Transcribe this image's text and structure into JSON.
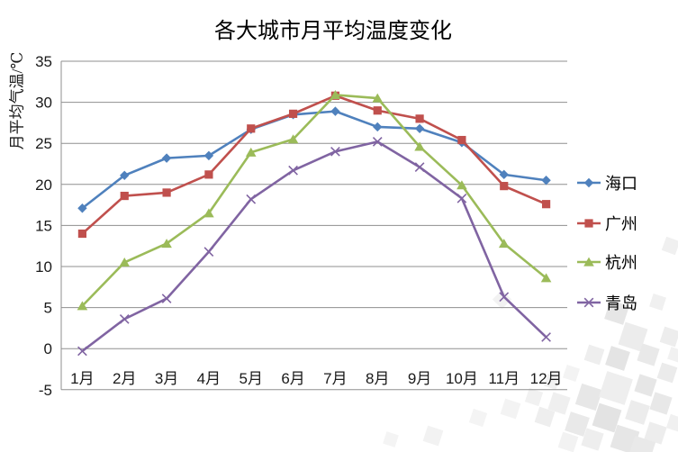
{
  "title": "各大城市月平均温度变化",
  "chart_data": {
    "type": "line",
    "title": "各大城市月平均温度变化",
    "xlabel": "",
    "ylabel": "月平均气温/℃",
    "categories": [
      "1月",
      "2月",
      "3月",
      "4月",
      "5月",
      "6月",
      "7月",
      "8月",
      "9月",
      "10月",
      "11月",
      "12月"
    ],
    "series": [
      {
        "name": "海口",
        "color": "#4F81BD",
        "marker": "diamond",
        "values": [
          17.1,
          21.1,
          23.2,
          23.5,
          26.7,
          28.5,
          28.9,
          27.0,
          26.8,
          25.1,
          21.2,
          20.5
        ]
      },
      {
        "name": "广州",
        "color": "#C0504D",
        "marker": "square",
        "values": [
          14.0,
          18.6,
          19.0,
          21.2,
          26.8,
          28.6,
          30.8,
          29.0,
          28.0,
          25.4,
          19.8,
          17.6
        ]
      },
      {
        "name": "杭州",
        "color": "#9BBB59",
        "marker": "triangle",
        "values": [
          5.2,
          10.5,
          12.8,
          16.5,
          23.9,
          25.5,
          30.9,
          30.5,
          24.6,
          19.9,
          12.8,
          8.6
        ]
      },
      {
        "name": "青岛",
        "color": "#8064A2",
        "marker": "x",
        "values": [
          -0.3,
          3.6,
          6.1,
          11.8,
          18.2,
          21.7,
          24.0,
          25.2,
          22.1,
          18.3,
          6.3,
          1.4
        ]
      }
    ],
    "ylim": [
      -5,
      35
    ],
    "yticks": [
      35,
      30,
      25,
      20,
      15,
      10,
      5,
      0,
      -5
    ],
    "grid": true,
    "gridline_color": "#8f8f8f",
    "legend_position": "right"
  }
}
